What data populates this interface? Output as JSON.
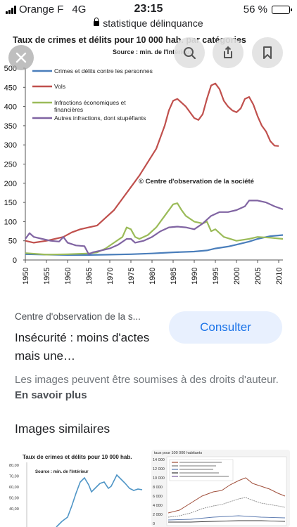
{
  "status_bar": {
    "carrier": "Orange F",
    "network": "4G",
    "time": "23:15",
    "battery_percent_label": "56 %",
    "battery_level": 0.56
  },
  "url_bar": {
    "domain": "statistique délinquance"
  },
  "image_overlay": {
    "close_icon": "close-icon",
    "lens_icon": "lens-icon",
    "share_icon": "share-icon",
    "bookmark_icon": "bookmark-icon"
  },
  "chart_data": {
    "type": "line",
    "title": "Taux de crimes et délits pour 10 000 hab. par catégories",
    "subtitle": "Source : min. de l'Intérieur",
    "annotation": "© Centre  d'observation de la société",
    "x_ticks": [
      "1950",
      "1955",
      "1960",
      "1965",
      "1970",
      "1975",
      "1980",
      "1985",
      "1990",
      "1995",
      "2000",
      "2005",
      "2010"
    ],
    "y_ticks": [
      "0",
      "50",
      "100",
      "150",
      "200",
      "250",
      "300",
      "350",
      "400",
      "450",
      "500"
    ],
    "xlim": [
      1950,
      2011
    ],
    "ylim": [
      0,
      500
    ],
    "grid": false,
    "legend_position": "top-left",
    "series": [
      {
        "name": "Crimes et délits contre les personnes",
        "color": "#4a7ebb",
        "points": [
          [
            1950,
            15
          ],
          [
            1955,
            14
          ],
          [
            1960,
            13
          ],
          [
            1965,
            13
          ],
          [
            1970,
            14
          ],
          [
            1975,
            15
          ],
          [
            1980,
            17
          ],
          [
            1985,
            20
          ],
          [
            1990,
            22
          ],
          [
            1993,
            25
          ],
          [
            1995,
            30
          ],
          [
            1998,
            35
          ],
          [
            2000,
            40
          ],
          [
            2003,
            48
          ],
          [
            2005,
            55
          ],
          [
            2008,
            62
          ],
          [
            2011,
            65
          ]
        ]
      },
      {
        "name": "Vols",
        "color": "#c0504d",
        "points": [
          [
            1950,
            50
          ],
          [
            1952,
            45
          ],
          [
            1955,
            50
          ],
          [
            1957,
            55
          ],
          [
            1959,
            60
          ],
          [
            1961,
            72
          ],
          [
            1963,
            80
          ],
          [
            1965,
            85
          ],
          [
            1967,
            90
          ],
          [
            1969,
            110
          ],
          [
            1971,
            130
          ],
          [
            1973,
            160
          ],
          [
            1975,
            190
          ],
          [
            1977,
            220
          ],
          [
            1979,
            255
          ],
          [
            1981,
            290
          ],
          [
            1983,
            350
          ],
          [
            1984,
            390
          ],
          [
            1985,
            415
          ],
          [
            1986,
            420
          ],
          [
            1988,
            400
          ],
          [
            1990,
            370
          ],
          [
            1991,
            365
          ],
          [
            1992,
            380
          ],
          [
            1993,
            420
          ],
          [
            1994,
            455
          ],
          [
            1995,
            460
          ],
          [
            1996,
            445
          ],
          [
            1997,
            415
          ],
          [
            1998,
            400
          ],
          [
            1999,
            390
          ],
          [
            2000,
            385
          ],
          [
            2001,
            395
          ],
          [
            2002,
            420
          ],
          [
            2003,
            425
          ],
          [
            2004,
            405
          ],
          [
            2005,
            375
          ],
          [
            2006,
            350
          ],
          [
            2007,
            335
          ],
          [
            2008,
            310
          ],
          [
            2009,
            298
          ],
          [
            2010,
            297
          ]
        ]
      },
      {
        "name": "Infractions économiques et financières",
        "color": "#9bbb59",
        "points": [
          [
            1950,
            18
          ],
          [
            1955,
            14
          ],
          [
            1960,
            15
          ],
          [
            1965,
            17
          ],
          [
            1967,
            20
          ],
          [
            1969,
            30
          ],
          [
            1971,
            45
          ],
          [
            1973,
            60
          ],
          [
            1974,
            85
          ],
          [
            1975,
            80
          ],
          [
            1976,
            60
          ],
          [
            1977,
            55
          ],
          [
            1979,
            65
          ],
          [
            1981,
            85
          ],
          [
            1983,
            115
          ],
          [
            1985,
            145
          ],
          [
            1986,
            148
          ],
          [
            1987,
            130
          ],
          [
            1988,
            115
          ],
          [
            1990,
            100
          ],
          [
            1992,
            95
          ],
          [
            1993,
            100
          ],
          [
            1994,
            75
          ],
          [
            1995,
            80
          ],
          [
            1997,
            60
          ],
          [
            2000,
            50
          ],
          [
            2003,
            55
          ],
          [
            2005,
            60
          ],
          [
            2008,
            58
          ],
          [
            2011,
            55
          ]
        ]
      },
      {
        "name": "Autres infractions, dont stupéfiants",
        "color": "#8064a2",
        "points": [
          [
            1950,
            55
          ],
          [
            1951,
            70
          ],
          [
            1952,
            60
          ],
          [
            1954,
            55
          ],
          [
            1956,
            50
          ],
          [
            1958,
            48
          ],
          [
            1959,
            60
          ],
          [
            1960,
            45
          ],
          [
            1962,
            38
          ],
          [
            1964,
            36
          ],
          [
            1965,
            15
          ],
          [
            1966,
            20
          ],
          [
            1968,
            25
          ],
          [
            1970,
            30
          ],
          [
            1972,
            40
          ],
          [
            1974,
            55
          ],
          [
            1975,
            55
          ],
          [
            1976,
            45
          ],
          [
            1978,
            50
          ],
          [
            1980,
            60
          ],
          [
            1982,
            75
          ],
          [
            1984,
            85
          ],
          [
            1986,
            87
          ],
          [
            1988,
            85
          ],
          [
            1990,
            80
          ],
          [
            1992,
            95
          ],
          [
            1994,
            115
          ],
          [
            1996,
            125
          ],
          [
            1998,
            125
          ],
          [
            2000,
            130
          ],
          [
            2002,
            140
          ],
          [
            2003,
            155
          ],
          [
            2005,
            155
          ],
          [
            2007,
            150
          ],
          [
            2009,
            140
          ],
          [
            2011,
            132
          ]
        ]
      }
    ]
  },
  "result": {
    "source": "Centre d'observation de la s...",
    "title": "Insécurité : moins d'actes mais une…",
    "consult_label": "Consulter",
    "rights_text": "Les images peuvent être soumises à des droits d'auteur.",
    "learn_more_label": "En savoir plus"
  },
  "similar": {
    "heading": "Images similaires",
    "thumb1": {
      "title": "Taux de crimes et délits pour 10 000 hab.",
      "source": "Source : min. de l'Intérieur",
      "y_labels": [
        "80,00",
        "70,00",
        "60,00",
        "50,00",
        "40,00"
      ]
    },
    "thumb2": {
      "title": "taux pour 100 000 habitants",
      "y_labels": [
        "14 000",
        "12 000",
        "10 000",
        "8 000",
        "6 000",
        "4 000",
        "2 000",
        "0"
      ]
    }
  }
}
